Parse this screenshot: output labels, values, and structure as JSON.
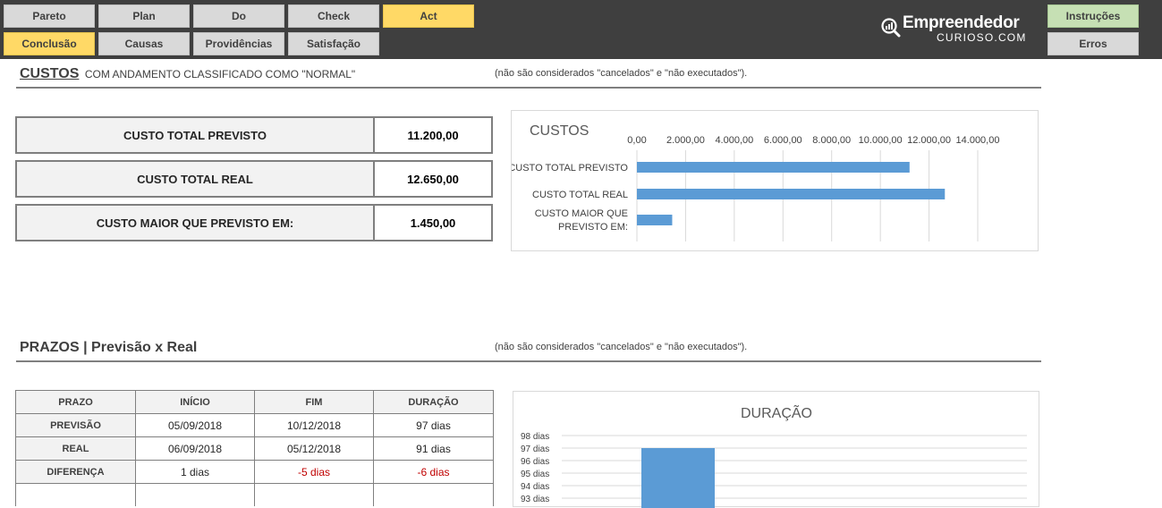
{
  "nav": {
    "row1": [
      "Pareto",
      "Plan",
      "Do",
      "Check",
      "Act"
    ],
    "row2": [
      "Conclusão",
      "Causas",
      "Providências",
      "Satisfação"
    ],
    "right": [
      "Instruções",
      "Erros"
    ]
  },
  "logo": {
    "main": "Empreendedor",
    "sub": "CURIOSO.COM"
  },
  "custos": {
    "title": "CUSTOS",
    "subtitle": "COM ANDAMENTO CLASSIFICADO COMO \"NORMAL\"",
    "note": "(não são considerados \"cancelados\" e \"não executados\").",
    "rows": [
      {
        "label": "CUSTO TOTAL PREVISTO",
        "value": "11.200,00"
      },
      {
        "label": "CUSTO TOTAL REAL",
        "value": "12.650,00"
      },
      {
        "label": "CUSTO MAIOR QUE PREVISTO EM:",
        "value": "1.450,00"
      }
    ]
  },
  "prazos": {
    "title": "PRAZOS | Previsão x Real",
    "note": "(não são considerados \"cancelados\" e \"não executados\").",
    "headers": [
      "PRAZO",
      "INÍCIO",
      "FIM",
      "DURAÇÃO"
    ],
    "rows": [
      [
        "PREVISÃO",
        "05/09/2018",
        "10/12/2018",
        "97 dias"
      ],
      [
        "REAL",
        "06/09/2018",
        "05/12/2018",
        "91 dias"
      ],
      [
        "DIFERENÇA",
        "1 dias",
        "-5 dias",
        "-6 dias"
      ]
    ]
  },
  "chart_data": [
    {
      "type": "bar",
      "orientation": "horizontal",
      "title": "CUSTOS",
      "categories": [
        "CUSTO TOTAL PREVISTO",
        "CUSTO TOTAL REAL",
        "CUSTO MAIOR QUE PREVISTO EM:"
      ],
      "values": [
        11200,
        12650,
        1450
      ],
      "xlim": [
        0,
        14000
      ],
      "ticks": [
        "0,00",
        "2.000,00",
        "4.000,00",
        "6.000,00",
        "8.000,00",
        "10.000,00",
        "12.000,00",
        "14.000,00"
      ],
      "axis_position": "top",
      "grid": true,
      "color": "#5b9bd5"
    },
    {
      "type": "bar",
      "title": "DURAÇÃO",
      "values": [
        97
      ],
      "ylim": [
        93,
        98
      ],
      "ticks": [
        "98 dias",
        "97 dias",
        "96 dias",
        "95 dias",
        "94 dias",
        "93 dias"
      ],
      "grid": true,
      "color": "#5b9bd5"
    }
  ]
}
